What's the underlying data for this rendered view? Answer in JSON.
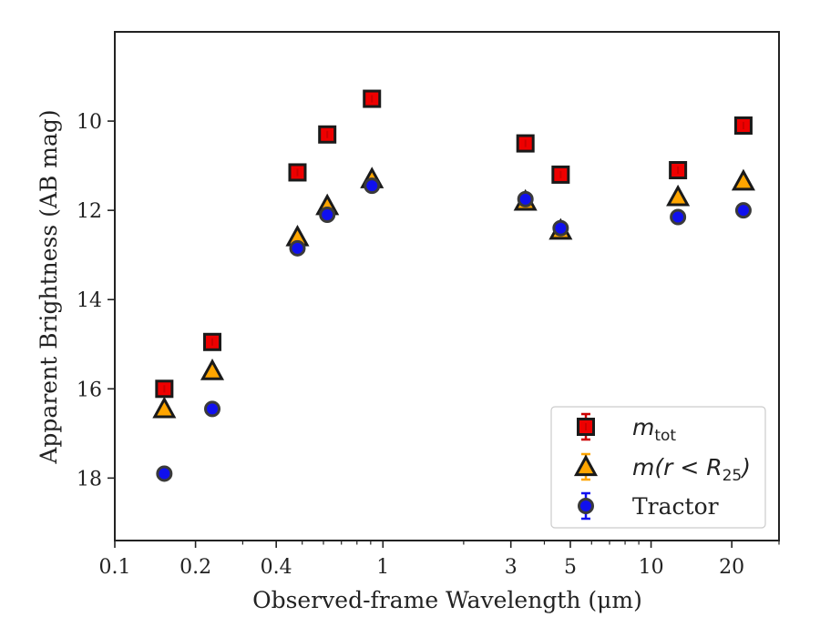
{
  "chart_data": {
    "type": "scatter",
    "title": "",
    "xlabel": "Observed-frame Wavelength (μm)",
    "ylabel": "Apparent Brightness (AB mag)",
    "xscale": "log",
    "xlim": [
      0.1,
      30
    ],
    "ylim": [
      19.4,
      8.0
    ],
    "y_inverted": true,
    "grid": false,
    "legend_placement": "lower-right",
    "x_ticks": [
      0.1,
      0.2,
      0.4,
      1,
      3,
      5,
      10,
      20
    ],
    "x_tick_labels": [
      "0.1",
      "0.2",
      "0.4",
      "1",
      "3",
      "5",
      "10",
      "20"
    ],
    "y_ticks": [
      10,
      12,
      14,
      16,
      18
    ],
    "y_tick_labels": [
      "10",
      "12",
      "14",
      "16",
      "18"
    ],
    "series": [
      {
        "name": "m_tot",
        "label_main": "m",
        "label_sub": "tot",
        "marker": "square",
        "color": "#ee0000",
        "errorbar_color": "#cc0000",
        "x": [
          0.153,
          0.231,
          0.48,
          0.62,
          0.91,
          3.4,
          4.6,
          12.6,
          22.1
        ],
        "y": [
          16.0,
          14.95,
          11.15,
          10.3,
          9.5,
          10.5,
          11.2,
          11.1,
          10.1
        ]
      },
      {
        "name": "m(r < R25)",
        "label_main": "m(r < R",
        "label_sub": "25",
        "label_end": ")",
        "marker": "triangle",
        "color": "#ffa500",
        "errorbar_color": "#ffa500",
        "x": [
          0.153,
          0.231,
          0.48,
          0.62,
          0.91,
          3.4,
          4.6,
          12.6,
          22.1
        ],
        "y": [
          16.45,
          15.6,
          12.6,
          11.9,
          11.3,
          11.8,
          12.45,
          11.7,
          11.35
        ]
      },
      {
        "name": "Tractor",
        "marker": "circle",
        "color": "#1010ee",
        "errorbar_color": "#1010ee",
        "x": [
          0.153,
          0.231,
          0.48,
          0.62,
          0.91,
          3.4,
          4.6,
          12.6,
          22.1
        ],
        "y": [
          17.9,
          16.45,
          12.85,
          12.1,
          11.45,
          11.75,
          12.4,
          12.15,
          12.0
        ]
      }
    ]
  }
}
